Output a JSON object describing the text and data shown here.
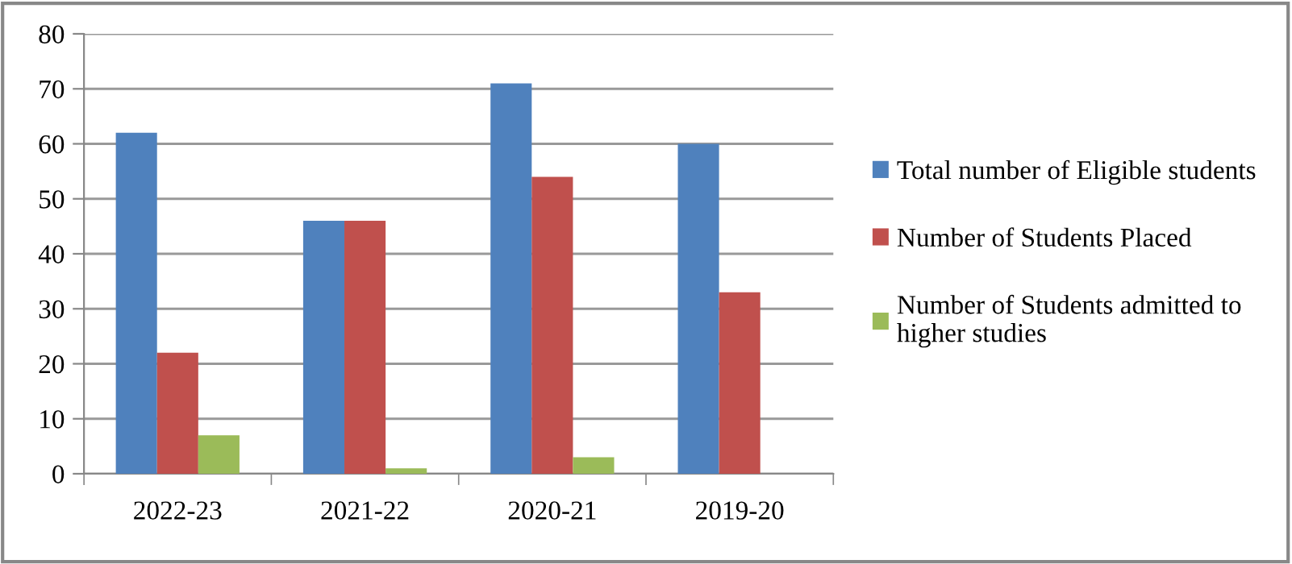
{
  "chart_data": {
    "type": "bar",
    "categories": [
      "2022-23",
      "2021-22",
      "2020-21",
      "2019-20"
    ],
    "series": [
      {
        "name": "Total number of Eligible students",
        "color": "#4f81bd",
        "values": [
          62,
          46,
          71,
          60
        ]
      },
      {
        "name": "Number of Students Placed",
        "color": "#c0504d",
        "values": [
          22,
          46,
          54,
          33
        ]
      },
      {
        "name": "Number of Students admitted to higher studies",
        "color": "#9bbb59",
        "values": [
          7,
          1,
          3,
          null
        ]
      }
    ],
    "ylim": [
      0,
      80
    ],
    "yticks": [
      0,
      10,
      20,
      30,
      40,
      50,
      60,
      70,
      80
    ],
    "grid": "y",
    "legend": "right"
  }
}
